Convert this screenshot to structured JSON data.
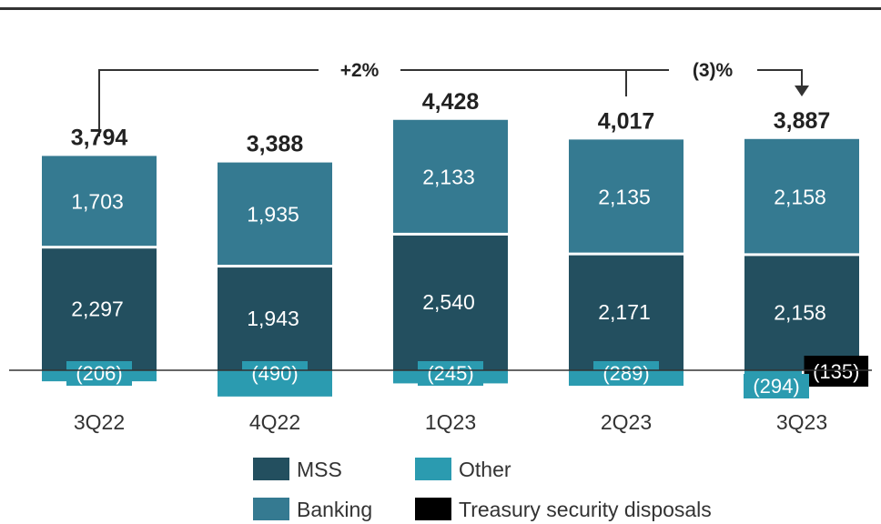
{
  "chart_data": {
    "type": "bar",
    "stacked": true,
    "categories": [
      "3Q22",
      "4Q22",
      "1Q23",
      "2Q23",
      "3Q23"
    ],
    "series": [
      {
        "name": "MSS",
        "values": [
          2297,
          1943,
          2540,
          2171,
          2158
        ],
        "color": "#234f5f"
      },
      {
        "name": "Banking",
        "values": [
          1703,
          1935,
          2133,
          2135,
          2158
        ],
        "color": "#357a91"
      },
      {
        "name": "Other",
        "values": [
          -206,
          -490,
          -245,
          -289,
          -294
        ],
        "color": "#2b9bb0"
      },
      {
        "name": "Treasury security disposals",
        "values": [
          null,
          null,
          null,
          null,
          -135
        ],
        "color": "#000000"
      }
    ],
    "series_labels": {
      "MSS": [
        "2,297",
        "1,943",
        "2,540",
        "2,171",
        "2,158"
      ],
      "Banking": [
        "1,703",
        "1,935",
        "2,133",
        "2,135",
        "2,158"
      ],
      "Other": [
        "(206)",
        "(490)",
        "(245)",
        "(289)",
        "(294)"
      ],
      "Treasury security disposals": [
        "",
        "",
        "",
        "",
        "(135)"
      ]
    },
    "totals": [
      3794,
      3388,
      4428,
      4017,
      3887
    ],
    "total_labels": [
      "3,794",
      "3,388",
      "4,428",
      "4,017",
      "3,887"
    ],
    "annotations": [
      {
        "text": "+2%",
        "from": "3Q22",
        "to": "3Q23"
      },
      {
        "text": "(3)%",
        "from": "2Q23",
        "to": "3Q23"
      }
    ],
    "title": "",
    "xlabel": "",
    "ylabel": "",
    "ylim": [
      -600,
      5200
    ],
    "grid": false,
    "legend_position": "bottom"
  }
}
